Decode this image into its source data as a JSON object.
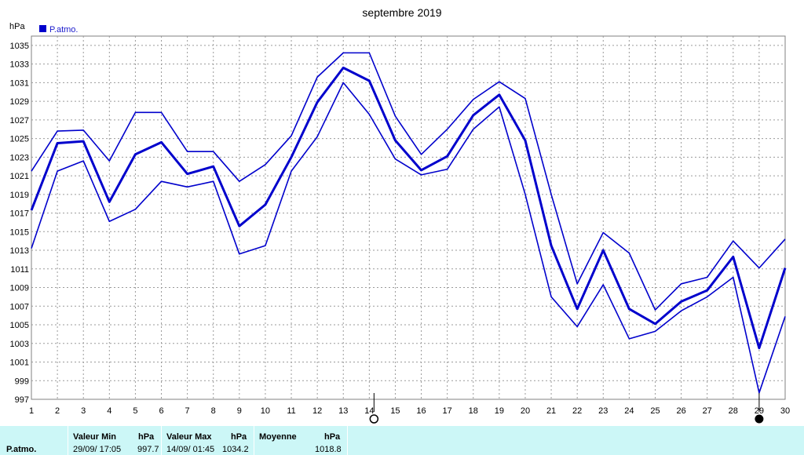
{
  "chart_data": {
    "type": "line",
    "title": "septembre 2019",
    "ylabel": "hPa",
    "xlabel": "",
    "ylim": [
      997,
      1036
    ],
    "xlim": [
      1,
      30
    ],
    "grid": true,
    "legend": "top-left",
    "x": [
      1,
      2,
      3,
      4,
      5,
      6,
      7,
      8,
      9,
      10,
      11,
      12,
      13,
      14,
      15,
      16,
      17,
      18,
      19,
      20,
      21,
      22,
      23,
      24,
      25,
      26,
      27,
      28,
      29,
      30
    ],
    "yticks": [
      997,
      999,
      1001,
      1003,
      1005,
      1007,
      1009,
      1011,
      1013,
      1015,
      1017,
      1019,
      1021,
      1023,
      1025,
      1027,
      1029,
      1031,
      1033,
      1035
    ],
    "series": [
      {
        "name": "P.atmo.",
        "role": "max",
        "color": "#0000cc",
        "values": [
          1021.5,
          1025.8,
          1025.9,
          1022.6,
          1027.8,
          1027.8,
          1023.6,
          1023.6,
          1020.4,
          1022.2,
          1025.3,
          1031.6,
          1034.2,
          1034.2,
          1027.4,
          1023.3,
          1026.0,
          1029.2,
          1031.1,
          1029.3,
          1019.0,
          1009.4,
          1014.9,
          1012.7,
          1006.6,
          1009.4,
          1010.1,
          1014.0,
          1011.1,
          1014.2
        ]
      },
      {
        "name": "P.atmo.",
        "role": "mean",
        "color": "#0000cc",
        "values": [
          1017.3,
          1024.5,
          1024.7,
          1018.2,
          1023.3,
          1024.6,
          1021.2,
          1022.0,
          1015.6,
          1017.9,
          1023.0,
          1028.9,
          1032.6,
          1031.2,
          1024.8,
          1021.6,
          1023.1,
          1027.5,
          1029.7,
          1024.8,
          1013.5,
          1006.7,
          1013.0,
          1006.7,
          1005.1,
          1007.5,
          1008.7,
          1012.3,
          1002.5,
          1011.1
        ]
      },
      {
        "name": "P.atmo.",
        "role": "min",
        "color": "#0000cc",
        "values": [
          1013.2,
          1021.5,
          1022.6,
          1016.1,
          1017.4,
          1020.4,
          1019.8,
          1020.4,
          1012.6,
          1013.5,
          1021.5,
          1025.2,
          1031.0,
          1027.6,
          1022.8,
          1021.1,
          1021.7,
          1026.0,
          1028.4,
          1019.0,
          1008.0,
          1004.8,
          1009.3,
          1003.5,
          1004.3,
          1006.5,
          1008.0,
          1010.1,
          997.7,
          1005.9
        ]
      }
    ],
    "markers": [
      {
        "day": 14,
        "symbol": "open-circle"
      },
      {
        "day": 29,
        "symbol": "filled-circle"
      }
    ]
  },
  "stats": {
    "row_label": "P.atmo.",
    "min_header": "Valeur Min",
    "min_unit": "hPa",
    "min_date": "29/09/  17:05",
    "min_value": "997.7",
    "max_header": "Valeur Max",
    "max_unit": "hPa",
    "max_date": "14/09/  01:45",
    "max_value": "1034.2",
    "mean_header": "Moyenne",
    "mean_unit": "hPa",
    "mean_value": "1018.8"
  }
}
